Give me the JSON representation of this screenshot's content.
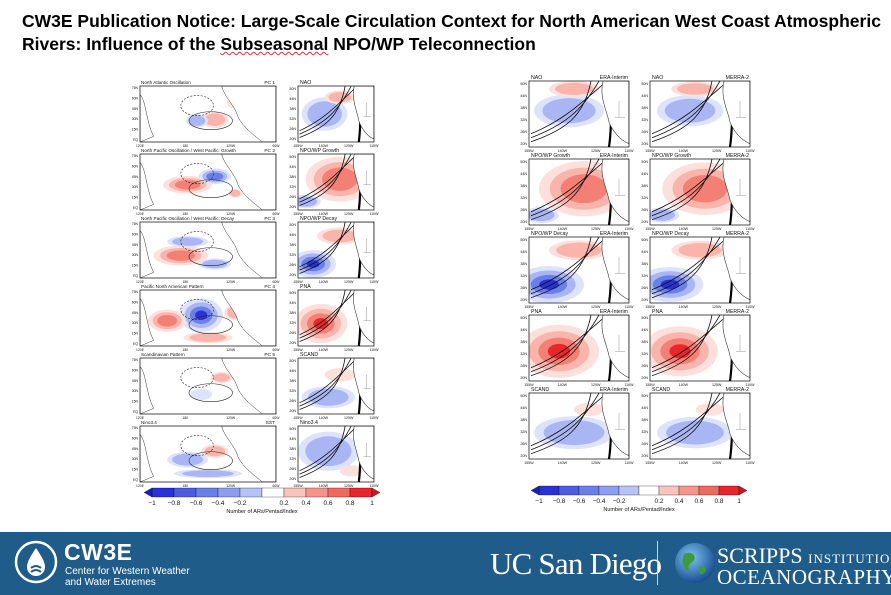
{
  "notice": {
    "title_part1": "CW3E Publication Notice: Large-Scale Circulation Context for North American West Coast Atmospheric Rivers: Influence of the ",
    "title_squiggle": "Subseasonal",
    "title_part2": " NPO/WP Teleconnection"
  },
  "left_figure": {
    "rows": [
      {
        "name": "North Atlantic Oscillation",
        "pc": "PC 1",
        "map": "NAO"
      },
      {
        "name": "North Pacific Oscillation / West Pacific: Growth",
        "pc": "PC 2",
        "map": "NPO/WP Growth"
      },
      {
        "name": "North Pacific Oscillation / West Pacific: Decay",
        "pc": "PC 3",
        "map": "NPO/WP Decay"
      },
      {
        "name": "Pacific North American Pattern",
        "pc": "PC 4",
        "map": "PNA"
      },
      {
        "name": "Scandinavian Pattern",
        "pc": "PC 5",
        "map": "SCAND"
      },
      {
        "name": "Nino3.4",
        "pc": "SST",
        "map": "Nino3.4"
      }
    ],
    "global_lat_ticks": [
      "75N",
      "60N",
      "45N",
      "30N",
      "15N",
      "EQ"
    ],
    "global_lon_ticks": [
      "120E",
      "180",
      "120W",
      "60W"
    ],
    "region_lat_ticks": [
      "50N",
      "44N",
      "38N",
      "32N",
      "26N",
      "20N"
    ],
    "region_lon_ticks": [
      "155W",
      "140W",
      "125W",
      "110W"
    ],
    "colorbar_ticks": [
      "−1",
      "−0.8",
      "−0.6",
      "−0.4",
      "−0.2",
      "0.2",
      "0.4",
      "0.6",
      "0.8",
      "1"
    ],
    "colorbar_label": "Number of ARs/Pentad/Index"
  },
  "right_figure": {
    "rows": [
      {
        "label": "NAO",
        "ds1": "ERA-Interim",
        "ds2": "MERRA-2"
      },
      {
        "label": "NPO/WP Growth",
        "ds1": "ERA-Interim",
        "ds2": "MERRA-2"
      },
      {
        "label": "NPO/WP Decay",
        "ds1": "ERA-Interim",
        "ds2": "MERRA-2"
      },
      {
        "label": "PNA",
        "ds1": "ERA-Interim",
        "ds2": "MERRA-2"
      },
      {
        "label": "SCAND",
        "ds1": "ERA-Interim",
        "ds2": "MERRA-2"
      }
    ],
    "lat_ticks": [
      "50N",
      "44N",
      "38N",
      "32N",
      "26N",
      "20N"
    ],
    "lon_ticks": [
      "155W",
      "140W",
      "125W",
      "110W"
    ],
    "colorbar_ticks": [
      "−1",
      "−0.8",
      "−0.6",
      "−0.4",
      "−0.2",
      "0.2",
      "0.4",
      "0.6",
      "0.8",
      "1"
    ],
    "colorbar_label": "Number of ARs/Pentad/Index"
  },
  "footer": {
    "cw3e_name": "CW3E",
    "cw3e_line1": "Center for Western Weather",
    "cw3e_line2": "and Water Extremes",
    "ucsd": "UC San Diego",
    "scripps_big": "SCRIPPS",
    "scripps_small": "INSTITUTION OF",
    "oceanography": "OCEANOGRAPHY"
  },
  "colors": {
    "footer_bg": "#1f5c89",
    "positive": "#e8262b",
    "negative": "#2832d8"
  },
  "icons": [
    "cw3e-drop-icon",
    "globe-icon"
  ]
}
